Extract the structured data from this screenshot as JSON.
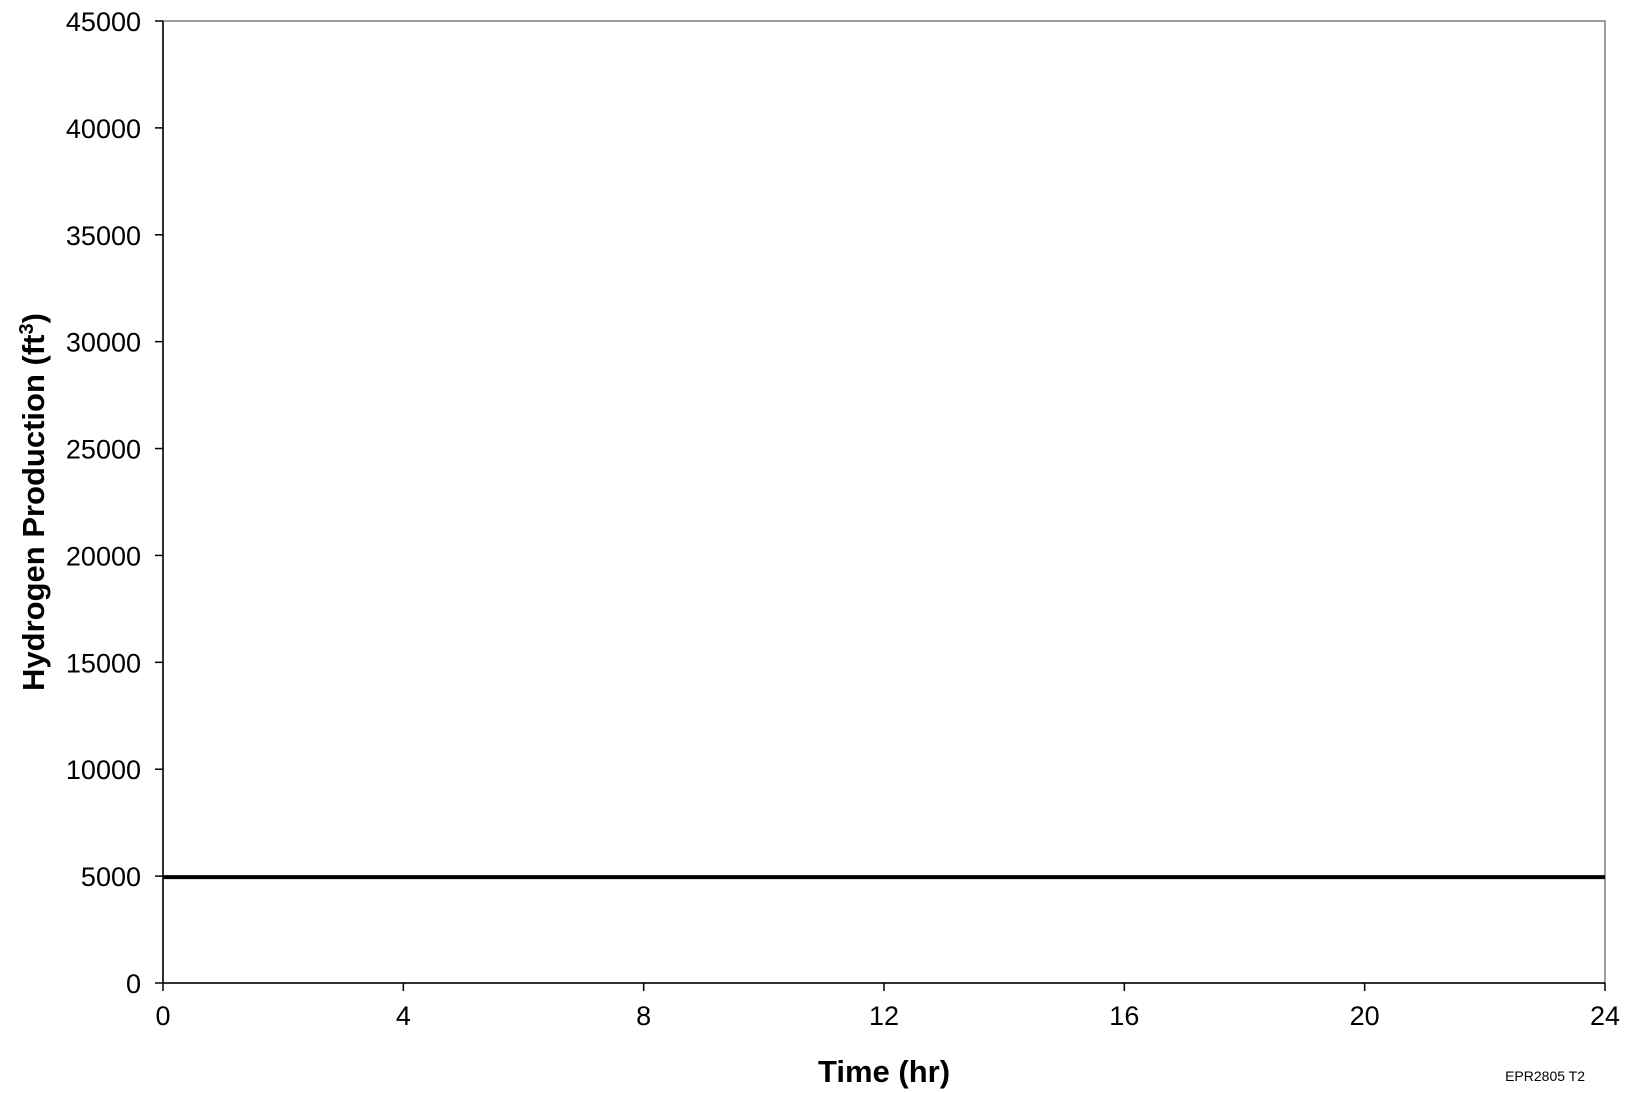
{
  "chart_data": {
    "type": "line",
    "title": "",
    "xlabel": "Time (hr)",
    "ylabel_main": "Hydrogen Production  (ft",
    "ylabel_sup": "3",
    "ylabel_end": ")",
    "xlim": [
      0,
      24
    ],
    "ylim": [
      0,
      45000
    ],
    "x_ticks": [
      "0",
      "4",
      "8",
      "12",
      "16",
      "20",
      "24"
    ],
    "x_tick_values": [
      0,
      4,
      8,
      12,
      16,
      20,
      24
    ],
    "y_ticks": [
      "0",
      "5000",
      "10000",
      "15000",
      "20000",
      "25000",
      "30000",
      "35000",
      "40000",
      "45000"
    ],
    "y_tick_values": [
      0,
      5000,
      10000,
      15000,
      20000,
      25000,
      30000,
      35000,
      40000,
      45000
    ],
    "grid": false,
    "legend": "none",
    "series": [
      {
        "x": [
          0,
          24
        ],
        "values": [
          4950,
          4950
        ],
        "color": "#000000"
      }
    ],
    "footnote": "EPR2805 T2"
  }
}
